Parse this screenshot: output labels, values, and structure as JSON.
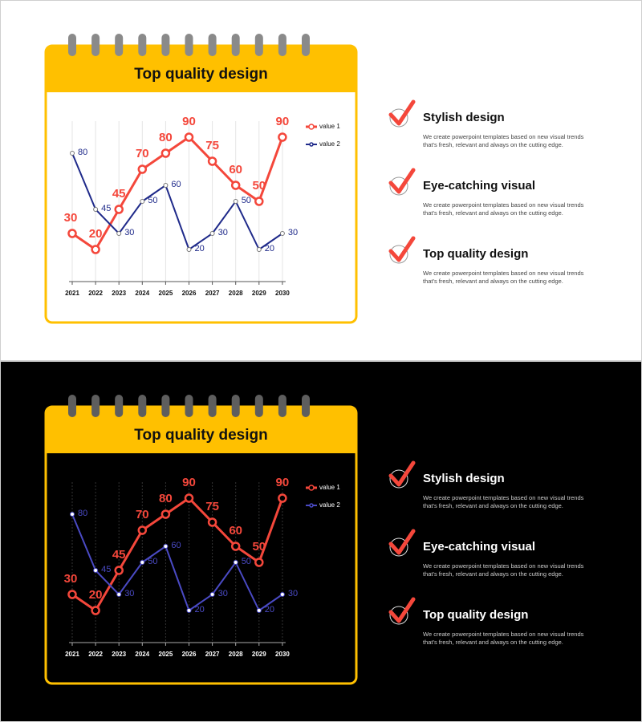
{
  "chart_data": [
    {
      "type": "line",
      "title": "Top quality design",
      "background": "#ffffff",
      "text_color": "#111111",
      "categories": [
        "2021",
        "2022",
        "2023",
        "2024",
        "2025",
        "2026",
        "2027",
        "2028",
        "2029",
        "2030"
      ],
      "series": [
        {
          "name": "value 1",
          "color": "#f4473b",
          "values": [
            30,
            20,
            45,
            70,
            80,
            90,
            75,
            60,
            50,
            90
          ]
        },
        {
          "name": "value 2",
          "color": "#1f2a8a",
          "values": [
            80,
            45,
            30,
            50,
            60,
            20,
            30,
            50,
            20,
            30
          ]
        }
      ],
      "ylim": [
        0,
        100
      ],
      "grid": true,
      "legend": "upper right"
    },
    {
      "type": "line",
      "title": "Top quality design",
      "background": "#000000",
      "text_color": "#ffffff",
      "categories": [
        "2021",
        "2022",
        "2023",
        "2024",
        "2025",
        "2026",
        "2027",
        "2028",
        "2029",
        "2030"
      ],
      "series": [
        {
          "name": "value 1",
          "color": "#f4473b",
          "values": [
            30,
            20,
            45,
            70,
            80,
            90,
            75,
            60,
            50,
            90
          ]
        },
        {
          "name": "value 2",
          "color": "#4a4ac4",
          "values": [
            80,
            45,
            30,
            50,
            60,
            20,
            30,
            50,
            20,
            30
          ]
        }
      ],
      "ylim": [
        0,
        100
      ],
      "grid": true,
      "legend": "upper right"
    }
  ],
  "features": [
    [
      {
        "title": "Stylish design",
        "lines": [
          "We create powerpoint templates based on new visual trends",
          "that's fresh, relevant and always on the cutting edge."
        ]
      },
      {
        "title": "Eye-catching visual",
        "lines": [
          "We create powerpoint templates based on new visual trends",
          "that's fresh, relevant and always on the cutting edge."
        ]
      },
      {
        "title": "Top quality design",
        "lines": [
          "We create powerpoint templates based on new visual trends",
          "that's fresh, relevant and always on the cutting edge."
        ]
      }
    ],
    [
      {
        "title": "Stylish design",
        "lines": [
          "We create powerpoint templates based on new visual trends",
          "that's fresh, relevant and always on the cutting edge."
        ]
      },
      {
        "title": "Eye-catching visual",
        "lines": [
          "We create powerpoint templates based on new visual trends",
          "that's fresh, relevant and always on the cutting edge."
        ]
      },
      {
        "title": "Top quality design",
        "lines": [
          "We create powerpoint templates based on new visual trends",
          "that's fresh, relevant and always on the cutting edge."
        ]
      }
    ]
  ]
}
